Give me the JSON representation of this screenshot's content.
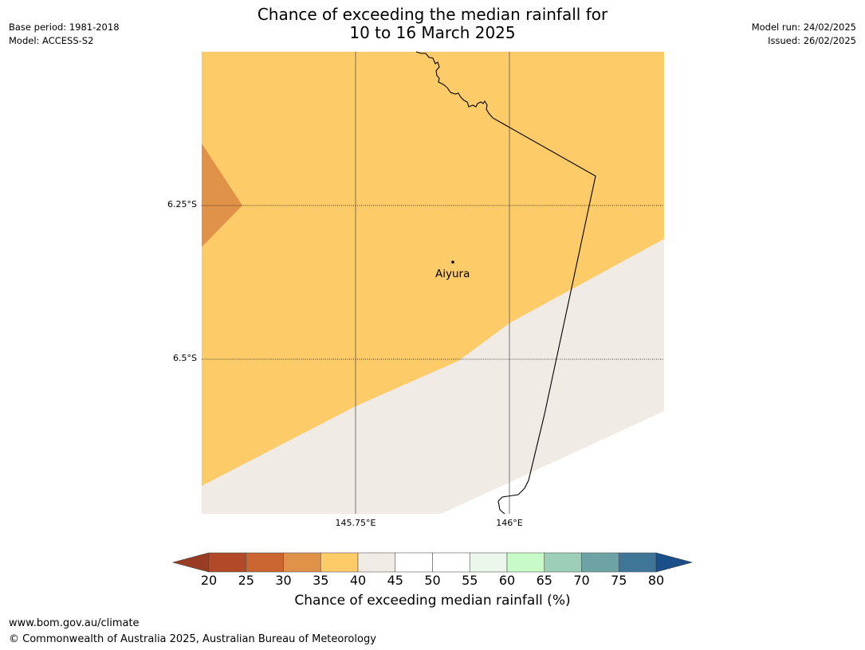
{
  "title": {
    "line1": "Chance of exceeding the median rainfall for",
    "line2": "10 to 16 March 2025"
  },
  "meta_left": {
    "base_period": "Base period: 1981-2018",
    "model": "Model: ACCESS-S2"
  },
  "meta_right": {
    "model_run": "Model run: 24/02/2025",
    "issued": "Issued: 26/02/2025"
  },
  "map": {
    "lat_labels": [
      "6.25°S",
      "6.5°S"
    ],
    "lon_labels": [
      "145.75°E",
      "146°E"
    ],
    "place": "Aiyura",
    "colors": {
      "35_40": "#fdcb67",
      "30_35": "#e09348",
      "40_45": "#f0ebe5"
    }
  },
  "colorbar": {
    "title": "Chance of exceeding median rainfall (%)",
    "ticks": [
      "20",
      "25",
      "30",
      "35",
      "40",
      "45",
      "50",
      "55",
      "60",
      "65",
      "70",
      "75",
      "80"
    ],
    "under_color": "#983c24",
    "over_color": "#1b4f8a",
    "bins": [
      "#b24a28",
      "#cb6532",
      "#e09348",
      "#fdcb67",
      "#f0ebe5",
      "#ffffff",
      "#ffffff",
      "#eaf7ea",
      "#c8fac8",
      "#9dcfb8",
      "#6ea3a6",
      "#3f7698"
    ]
  },
  "footer": {
    "url": "www.bom.gov.au/climate",
    "copyright": "© Commonwealth of Australia 2025, Australian Bureau of Meteorology"
  }
}
